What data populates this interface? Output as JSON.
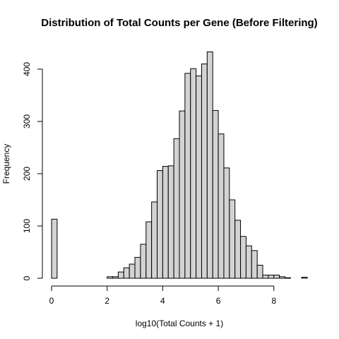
{
  "chart_data": {
    "type": "bar",
    "title": "Distribution of Total Counts per Gene (Before Filtering)",
    "xlabel": "log10(Total Counts + 1)",
    "ylabel": "Frequency",
    "xlim": [
      0,
      9.2
    ],
    "ylim": [
      0,
      435
    ],
    "xticks": [
      0,
      2,
      4,
      6,
      8
    ],
    "yticks": [
      0,
      100,
      200,
      300,
      400
    ],
    "bin_width": 0.2,
    "bins": [
      {
        "x0": 0.0,
        "count": 113
      },
      {
        "x0": 2.0,
        "count": 3
      },
      {
        "x0": 2.2,
        "count": 3
      },
      {
        "x0": 2.4,
        "count": 12
      },
      {
        "x0": 2.6,
        "count": 20
      },
      {
        "x0": 2.8,
        "count": 27
      },
      {
        "x0": 3.0,
        "count": 40
      },
      {
        "x0": 3.2,
        "count": 65
      },
      {
        "x0": 3.4,
        "count": 108
      },
      {
        "x0": 3.6,
        "count": 146
      },
      {
        "x0": 3.8,
        "count": 206
      },
      {
        "x0": 4.0,
        "count": 214
      },
      {
        "x0": 4.2,
        "count": 215
      },
      {
        "x0": 4.4,
        "count": 267
      },
      {
        "x0": 4.6,
        "count": 320
      },
      {
        "x0": 4.8,
        "count": 392
      },
      {
        "x0": 5.0,
        "count": 401
      },
      {
        "x0": 5.2,
        "count": 387
      },
      {
        "x0": 5.4,
        "count": 410
      },
      {
        "x0": 5.6,
        "count": 433
      },
      {
        "x0": 5.8,
        "count": 321
      },
      {
        "x0": 6.0,
        "count": 276
      },
      {
        "x0": 6.2,
        "count": 211
      },
      {
        "x0": 6.4,
        "count": 150
      },
      {
        "x0": 6.6,
        "count": 111
      },
      {
        "x0": 6.8,
        "count": 80
      },
      {
        "x0": 7.0,
        "count": 62
      },
      {
        "x0": 7.2,
        "count": 53
      },
      {
        "x0": 7.4,
        "count": 25
      },
      {
        "x0": 7.6,
        "count": 6
      },
      {
        "x0": 7.8,
        "count": 6
      },
      {
        "x0": 8.0,
        "count": 6
      },
      {
        "x0": 8.2,
        "count": 3
      },
      {
        "x0": 8.4,
        "count": 1
      },
      {
        "x0": 9.0,
        "count": 2
      }
    ]
  }
}
